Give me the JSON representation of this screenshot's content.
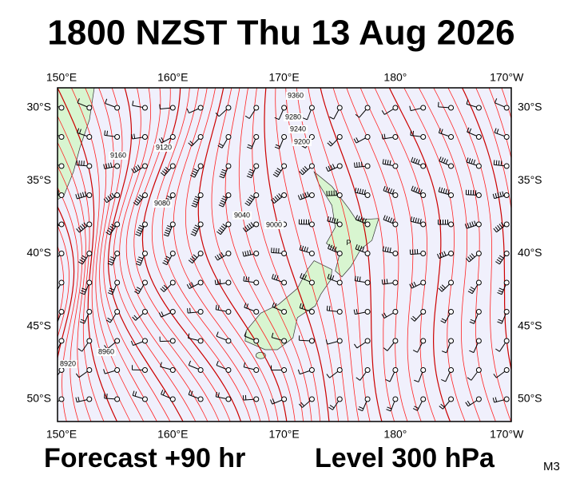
{
  "header": {
    "title": "1800 NZST Thu 13 Aug 2026"
  },
  "map": {
    "lon_labels": [
      "150°E",
      "160°E",
      "170°E",
      "180°",
      "170°W"
    ],
    "lat_labels": [
      "30°S",
      "35°S",
      "40°S",
      "45°S",
      "50°S"
    ],
    "contour_labels": [
      9360,
      9280,
      9240,
      9200,
      9160,
      9120,
      9080,
      9040,
      9000,
      8960,
      8920
    ],
    "place_label": "P"
  },
  "footer": {
    "forecast": "Forecast +90 hr",
    "level": "Level 300 hPa",
    "model": "M3"
  }
}
